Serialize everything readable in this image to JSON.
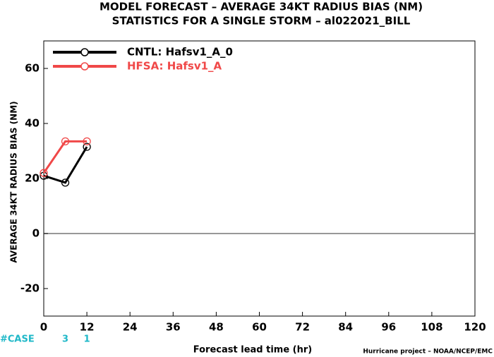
{
  "chart_data": {
    "type": "line",
    "title": "MODEL FORECAST – AVERAGE 34KT RADIUS BIAS (NM)",
    "subtitle": "STATISTICS FOR A SINGLE STORM – al022021_BILL",
    "x_label": "Forecast lead time (hr)",
    "y_label": "AVERAGE 34KT RADIUS BIAS (NM)",
    "footer": "Hurricane project – NOAA/NCEP/EMC",
    "case_label": "#CASE",
    "case_counts": {
      "x": [
        6,
        12
      ],
      "values": [
        3,
        1
      ]
    },
    "x": [
      0,
      6,
      12
    ],
    "series": [
      {
        "name": "CNTL: Hafsv1_A_0",
        "color": "#000000",
        "values": [
          21,
          18.5,
          31.5
        ]
      },
      {
        "name": "HFSA: Hafsv1_A",
        "color": "#f04848",
        "values": [
          22,
          33.5,
          33.5
        ]
      }
    ],
    "xlim": [
      0,
      120
    ],
    "xticks": [
      0,
      12,
      24,
      36,
      48,
      60,
      72,
      84,
      96,
      108,
      120
    ],
    "ylim": [
      -30,
      70
    ],
    "yticks": [
      -20,
      0,
      20,
      40,
      60
    ],
    "zero_line": true,
    "legend": "top-left"
  }
}
